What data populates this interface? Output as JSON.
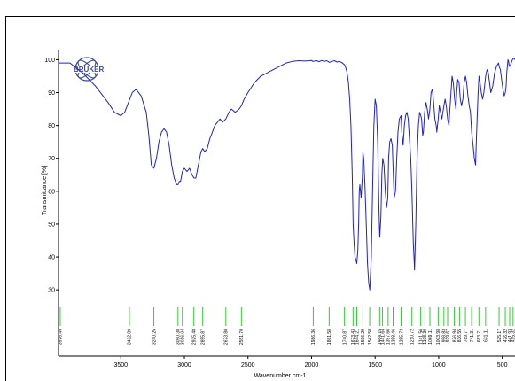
{
  "logo": {
    "text": "BRUKER"
  },
  "chart_data": {
    "type": "line",
    "xlabel": "Wavenumber cm-1",
    "ylabel": "Transmittance [%]",
    "xlim": [
      3990,
      400
    ],
    "ylim": [
      26,
      102
    ],
    "x_ticks": [
      3500,
      3000,
      2500,
      2000,
      1500,
      1000,
      500
    ],
    "y_ticks": [
      30,
      40,
      50,
      60,
      70,
      80,
      90,
      100
    ],
    "series": [
      {
        "x": [
          3990,
          3900,
          3800,
          3700,
          3600,
          3550,
          3500,
          3470,
          3440,
          3410,
          3380,
          3340,
          3300,
          3280,
          3260,
          3240,
          3220,
          3200,
          3180,
          3160,
          3140,
          3120,
          3100,
          3080,
          3060,
          3050,
          3040,
          3030,
          3016,
          3000,
          2980,
          2960,
          2940,
          2925,
          2910,
          2890,
          2870,
          2856,
          2840,
          2820,
          2800,
          2780,
          2760,
          2740,
          2720,
          2700,
          2674,
          2650,
          2630,
          2600,
          2570,
          2552,
          2530,
          2500,
          2450,
          2400,
          2350,
          2300,
          2250,
          2200,
          2150,
          2100,
          2050,
          2000,
          1990,
          1960,
          1940,
          1920,
          1900,
          1880,
          1860,
          1840,
          1820,
          1800,
          1780,
          1760,
          1741,
          1730,
          1720,
          1710,
          1700,
          1690,
          1680,
          1673,
          1665,
          1658,
          1650,
          1644,
          1636,
          1630,
          1625,
          1620,
          1610,
          1600,
          1596,
          1590,
          1580,
          1570,
          1560,
          1550,
          1542,
          1530,
          1520,
          1510,
          1500,
          1490,
          1480,
          1470,
          1464,
          1455,
          1447,
          1440,
          1430,
          1420,
          1410,
          1400,
          1394,
          1385,
          1375,
          1365,
          1358,
          1350,
          1340,
          1330,
          1320,
          1310,
          1296,
          1290,
          1280,
          1270,
          1260,
          1250,
          1240,
          1230,
          1220,
          1211,
          1200,
          1190,
          1180,
          1170,
          1160,
          1150,
          1141,
          1135,
          1126,
          1120,
          1110,
          1100,
          1090,
          1080,
          1069,
          1060,
          1050,
          1040,
          1030,
          1020,
          1015,
          1004,
          995,
          985,
          975,
          959,
          950,
          940,
          930,
          920,
          910,
          900,
          895,
          885,
          875,
          865,
          859,
          850,
          840,
          830,
          820,
          810,
          800,
          790,
          780,
          770,
          760,
          750,
          741,
          730,
          720,
          710,
          700,
          690,
          683,
          675,
          665,
          655,
          645,
          631,
          620,
          610,
          600,
          590,
          575,
          560,
          545,
          530,
          525,
          515,
          505,
          495,
          485,
          476,
          470,
          465,
          460,
          455,
          450,
          445,
          440,
          430,
          420,
          410,
          400
        ],
        "y": [
          99,
          99,
          96,
          92,
          87,
          84,
          83,
          84,
          87,
          90,
          91,
          89,
          84,
          77,
          68,
          67,
          70,
          75,
          78,
          79,
          78,
          74,
          68,
          64,
          62,
          62,
          63,
          63,
          66,
          67,
          66,
          67,
          65,
          64,
          64,
          68,
          72,
          73,
          72,
          73,
          76,
          78,
          80,
          81,
          82,
          81,
          82,
          84,
          85,
          84,
          85,
          86,
          88,
          90,
          93,
          95,
          96,
          97,
          98,
          99,
          99.5,
          99.7,
          99.6,
          99.8,
          99.5,
          99.7,
          99.4,
          99.8,
          99.5,
          99.7,
          99.2,
          99.5,
          99.7,
          99.3,
          99.5,
          99.1,
          98.5,
          97.5,
          96,
          93,
          88,
          80,
          65,
          50,
          44,
          40,
          39,
          38,
          42,
          50,
          60,
          62,
          58,
          65,
          72,
          70,
          62,
          50,
          38,
          32,
          30,
          40,
          60,
          80,
          88,
          86,
          75,
          55,
          46,
          52,
          65,
          70,
          68,
          60,
          55,
          58,
          70,
          75,
          76,
          74,
          66,
          58,
          60,
          70,
          78,
          82,
          83,
          78,
          74,
          80,
          83,
          84,
          82,
          76,
          70,
          60,
          45,
          36,
          50,
          70,
          80,
          84,
          83,
          82,
          77,
          78,
          84,
          87,
          85,
          82,
          85,
          90,
          91,
          87,
          82,
          80,
          78,
          82,
          86,
          84,
          82,
          86,
          88,
          86,
          82,
          80,
          86,
          92,
          95,
          93,
          88,
          85,
          90,
          94,
          93,
          88,
          86,
          88,
          93,
          95,
          93,
          89,
          86,
          84,
          78,
          74,
          70,
          68,
          80,
          90,
          95,
          93,
          90,
          88,
          90,
          95,
          97,
          96,
          93,
          90,
          92,
          96,
          98,
          99,
          98,
          97,
          94,
          91,
          89,
          90,
          92,
          96,
          98,
          100,
          99.5,
          98,
          98,
          99,
          100,
          100.5,
          100
        ]
      }
    ],
    "peak_labels": [
      "3976.45",
      "3432.89",
      "3240.25",
      "3050.38",
      "3016.04",
      "2925.48",
      "2855.87",
      "2673.80",
      "2551.70",
      "1986.36",
      "1861.58",
      "1740.87",
      "1673.43",
      "1644.21",
      "1596.29",
      "1542.58",
      "1464.15",
      "1441.64",
      "1397.66",
      "1358.46",
      "1295.73",
      "1210.72",
      "1141.56",
      "1108.30",
      "1069.11",
      "1003.98",
      "958.83",
      "929.67",
      "876.94",
      "836.55",
      "789.77",
      "741.31",
      "683.71",
      "631.11",
      "525.17",
      "476.32",
      "441.93",
      "415.32"
    ],
    "peak_positions": [
      3976.45,
      3432.89,
      3240.25,
      3050.38,
      3016.04,
      2925.48,
      2855.87,
      2673.8,
      2551.7,
      1986.36,
      1861.58,
      1740.87,
      1673.43,
      1644.21,
      1596.29,
      1542.58,
      1464.15,
      1441.64,
      1397.66,
      1358.46,
      1295.73,
      1210.72,
      1141.56,
      1108.3,
      1069.11,
      1003.98,
      958.83,
      929.67,
      876.94,
      836.55,
      789.77,
      741.31,
      683.71,
      631.11,
      525.17,
      476.32,
      441.93,
      415.32
    ],
    "line_color": "#2020d0",
    "peak_marker_color": "#33cc33"
  }
}
